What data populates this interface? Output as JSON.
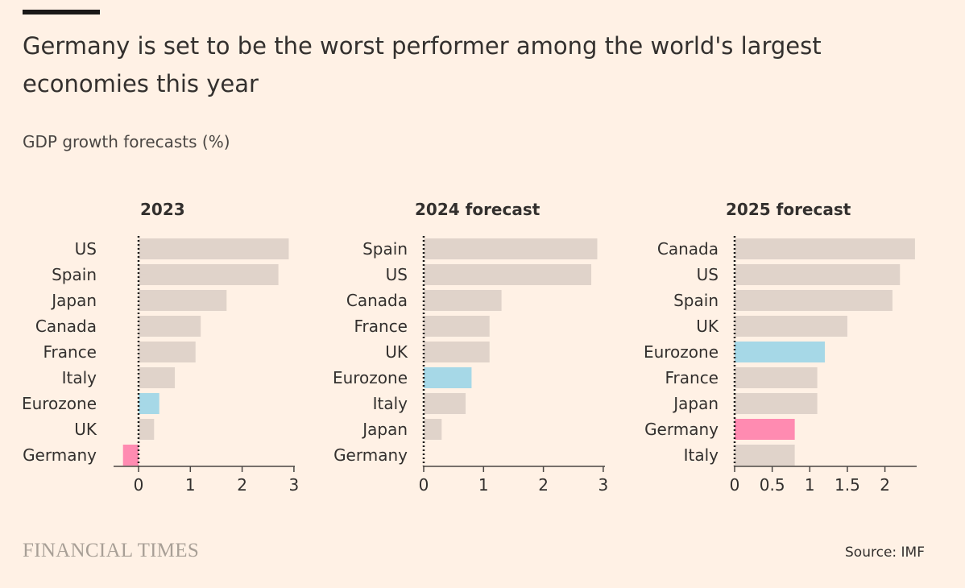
{
  "title": "Germany is set to be the worst performer among the world's largest economies this year",
  "subtitle": "GDP growth forecasts (%)",
  "source": "Source: IMF",
  "logo_text": "FINANCIAL TIMES",
  "colors": {
    "background": "#FFF1E5",
    "bar_default": "#E0D3CA",
    "highlight_eurozone": "#A6D8E7",
    "highlight_germany": "#FF8BB1",
    "axis": "#33302E"
  },
  "chart_data": [
    {
      "type": "bar",
      "orientation": "horizontal",
      "title": "2023",
      "categories": [
        "US",
        "Spain",
        "Japan",
        "Canada",
        "France",
        "Italy",
        "Eurozone",
        "UK",
        "Germany"
      ],
      "values": [
        2.9,
        2.7,
        1.7,
        1.2,
        1.1,
        0.7,
        0.4,
        0.3,
        -0.3
      ],
      "xlim": [
        -0.5,
        3
      ],
      "xticks": [
        0,
        1,
        2,
        3
      ],
      "xtick_labels": [
        "0",
        "1",
        "2",
        "3"
      ]
    },
    {
      "type": "bar",
      "orientation": "horizontal",
      "title": "2024 forecast",
      "categories": [
        "Spain",
        "US",
        "Canada",
        "France",
        "UK",
        "Eurozone",
        "Italy",
        "Japan",
        "Germany"
      ],
      "values": [
        2.9,
        2.8,
        1.3,
        1.1,
        1.1,
        0.8,
        0.7,
        0.3,
        0.0
      ],
      "xlim": [
        0,
        3
      ],
      "xticks": [
        0,
        1,
        2,
        3
      ],
      "xtick_labels": [
        "0",
        "1",
        "2",
        "3"
      ]
    },
    {
      "type": "bar",
      "orientation": "horizontal",
      "title": "2025 forecast",
      "categories": [
        "Canada",
        "US",
        "Spain",
        "UK",
        "Eurozone",
        "France",
        "Japan",
        "Germany",
        "Italy"
      ],
      "values": [
        2.4,
        2.2,
        2.1,
        1.5,
        1.2,
        1.1,
        1.1,
        0.8,
        0.8
      ],
      "xlim": [
        0,
        2.4
      ],
      "xticks": [
        0,
        0.5,
        1,
        1.5,
        2
      ],
      "xtick_labels": [
        "0",
        "0.5",
        "1",
        "1.5",
        "2"
      ]
    }
  ]
}
